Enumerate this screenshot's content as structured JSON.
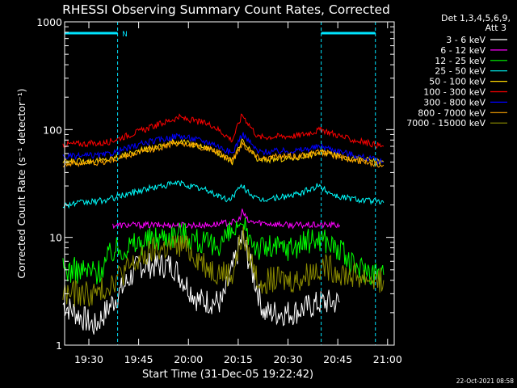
{
  "colors": {
    "background": "#000000",
    "axis": "#ffffff",
    "attenuator": "#00e5ff"
  },
  "footer_timestamp": "22-Oct-2021 08:58",
  "chart_data": {
    "type": "line",
    "title": "RHESSI Observing Summary Count Rates, Corrected",
    "xlabel": "Start Time (31-Dec-05 19:22:42)",
    "ylabel": "Corrected Count Rate (s⁻¹ detector⁻¹)",
    "yscale": "log",
    "ylim": [
      1,
      1000
    ],
    "xlim": [
      "19:22:42",
      "21:02:00"
    ],
    "xticks": [
      "19:30",
      "19:45",
      "20:00",
      "20:15",
      "20:30",
      "20:45",
      "21:00"
    ],
    "ytick_labels": [
      "1",
      "10",
      "100",
      "1000"
    ],
    "legend": {
      "header": [
        "Det 1,3,4,5,6,9,",
        "Att 3"
      ],
      "position": "top-right"
    },
    "attenuator_marks": {
      "lines": [
        "19:38:40",
        "20:40:00",
        "20:56:20"
      ],
      "bar_segments": [
        [
          "19:22:42",
          "19:38:40"
        ],
        [
          "20:40:00",
          "20:56:20"
        ]
      ],
      "label": "N",
      "label_at": "19:40:00"
    },
    "series": [
      {
        "name": "3 - 6 keV",
        "color": "#ffffff",
        "values": [
          [
            19.37,
            2.4
          ],
          [
            19.53,
            1.5
          ],
          [
            19.62,
            2.5
          ],
          [
            19.75,
            5.5
          ],
          [
            19.92,
            5.5
          ],
          [
            20.05,
            2.6
          ],
          [
            20.17,
            2.5
          ],
          [
            20.27,
            10
          ],
          [
            20.38,
            2.0
          ],
          [
            20.52,
            2.0
          ],
          [
            20.67,
            2.5
          ],
          [
            20.76,
            2.5
          ]
        ]
      },
      {
        "name": "6 - 12 keV",
        "color": "#ff00ff",
        "values": [
          [
            19.62,
            13
          ],
          [
            19.85,
            13
          ],
          [
            20.1,
            13
          ],
          [
            20.25,
            14
          ],
          [
            20.27,
            17.5
          ],
          [
            20.3,
            14
          ],
          [
            20.5,
            13
          ],
          [
            20.67,
            13
          ],
          [
            20.76,
            13
          ]
        ]
      },
      {
        "name": "12 - 25 keV",
        "color": "#00ff00",
        "values": [
          [
            19.37,
            5.0
          ],
          [
            19.55,
            4.8
          ],
          [
            19.62,
            7.5
          ],
          [
            19.85,
            10
          ],
          [
            19.97,
            11
          ],
          [
            20.12,
            8
          ],
          [
            20.27,
            13
          ],
          [
            20.35,
            8
          ],
          [
            20.5,
            8
          ],
          [
            20.67,
            10
          ],
          [
            20.76,
            7.5
          ],
          [
            20.82,
            5.5
          ],
          [
            20.98,
            4.5
          ]
        ]
      },
      {
        "name": "25 - 50 keV",
        "color": "#00ffff",
        "values": [
          [
            19.37,
            20
          ],
          [
            19.58,
            22
          ],
          [
            19.78,
            28
          ],
          [
            19.95,
            32
          ],
          [
            20.1,
            27
          ],
          [
            20.2,
            22
          ],
          [
            20.27,
            30
          ],
          [
            20.35,
            22
          ],
          [
            20.55,
            25
          ],
          [
            20.65,
            30
          ],
          [
            20.75,
            24
          ],
          [
            20.98,
            21
          ]
        ]
      },
      {
        "name": "50 - 100 keV",
        "color": "#ffd700",
        "values": [
          [
            19.37,
            50
          ],
          [
            19.58,
            52
          ],
          [
            19.78,
            65
          ],
          [
            19.95,
            78
          ],
          [
            20.12,
            66
          ],
          [
            20.22,
            50
          ],
          [
            20.27,
            78
          ],
          [
            20.35,
            52
          ],
          [
            20.55,
            55
          ],
          [
            20.67,
            62
          ],
          [
            20.8,
            55
          ],
          [
            20.98,
            50
          ]
        ]
      },
      {
        "name": "100 - 300 keV",
        "color": "#ff0000",
        "values": [
          [
            19.37,
            73
          ],
          [
            19.58,
            75
          ],
          [
            19.78,
            100
          ],
          [
            19.95,
            130
          ],
          [
            20.12,
            110
          ],
          [
            20.22,
            80
          ],
          [
            20.27,
            138
          ],
          [
            20.35,
            85
          ],
          [
            20.55,
            88
          ],
          [
            20.67,
            100
          ],
          [
            20.8,
            82
          ],
          [
            20.98,
            70
          ]
        ]
      },
      {
        "name": "300 - 800 keV",
        "color": "#0000ff",
        "values": [
          [
            19.37,
            56
          ],
          [
            19.58,
            58
          ],
          [
            19.78,
            75
          ],
          [
            19.95,
            88
          ],
          [
            20.12,
            75
          ],
          [
            20.22,
            60
          ],
          [
            20.27,
            92
          ],
          [
            20.35,
            62
          ],
          [
            20.55,
            64
          ],
          [
            20.67,
            70
          ],
          [
            20.8,
            60
          ],
          [
            20.98,
            50
          ]
        ]
      },
      {
        "name": "800 - 7000 keV",
        "color": "#ffa500",
        "values": [
          [
            19.37,
            48
          ],
          [
            19.58,
            50
          ],
          [
            19.78,
            63
          ],
          [
            19.95,
            76
          ],
          [
            20.12,
            65
          ],
          [
            20.22,
            52
          ],
          [
            20.27,
            75
          ],
          [
            20.35,
            55
          ],
          [
            20.55,
            57
          ],
          [
            20.67,
            62
          ],
          [
            20.8,
            53
          ],
          [
            20.98,
            47
          ]
        ]
      },
      {
        "name": "7000 - 15000 keV",
        "color": "#8b8b00",
        "values": [
          [
            19.37,
            3.0
          ],
          [
            19.55,
            3.0
          ],
          [
            19.62,
            4.0
          ],
          [
            19.82,
            7.5
          ],
          [
            19.97,
            8.5
          ],
          [
            20.12,
            5
          ],
          [
            20.22,
            4.5
          ],
          [
            20.27,
            10.5
          ],
          [
            20.35,
            4
          ],
          [
            20.55,
            4
          ],
          [
            20.67,
            5.5
          ],
          [
            20.8,
            4.5
          ],
          [
            20.98,
            4.0
          ]
        ]
      }
    ]
  }
}
